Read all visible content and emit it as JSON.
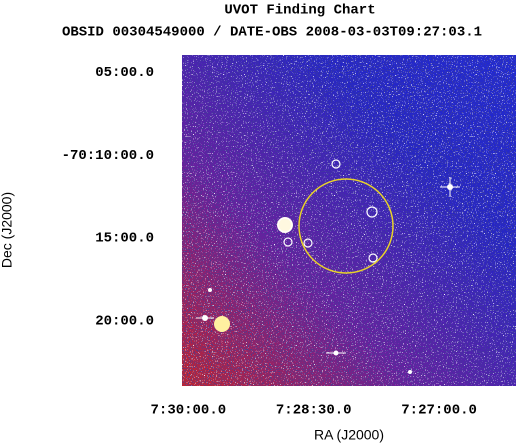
{
  "chart_data": {
    "type": "image",
    "title": "UVOT Finding Chart",
    "subtitle": "OBSID 00304549000 / DATE-OBS 2008-03-03T09:27:03.1",
    "xlabel": "RA (J2000)",
    "ylabel": "Dec (J2000)",
    "xlim": [
      112.51,
      111.52
    ],
    "xticks": [
      {
        "value": 112.5,
        "label": "7:30:00.0"
      },
      {
        "value": 112.125,
        "label": "7:28:30.0"
      },
      {
        "value": 111.75,
        "label": "7:27:00.0"
      }
    ],
    "ylim": [
      -70.399,
      -70.066
    ],
    "yticks": [
      {
        "value": -70.0833,
        "label": "05:00.0"
      },
      {
        "value": -70.1667,
        "label": "-70:10:00.0"
      },
      {
        "value": -70.25,
        "label": "15:00.0"
      },
      {
        "value": -70.3333,
        "label": "20:00.0"
      }
    ]
  }
}
